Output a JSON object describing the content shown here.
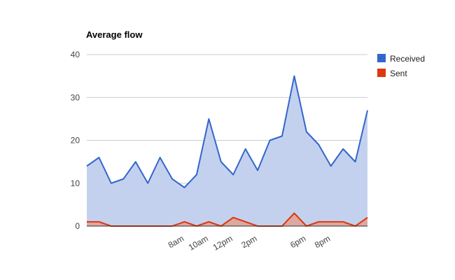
{
  "chart_data": {
    "type": "area",
    "title": "Average flow",
    "xlabel": "",
    "ylabel": "",
    "ylim": [
      0,
      40
    ],
    "yticks": [
      "0",
      "10",
      "20",
      "30",
      "40"
    ],
    "x_tick_labels": [
      {
        "label": "8am",
        "index": 8
      },
      {
        "label": "10am",
        "index": 10
      },
      {
        "label": "12pm",
        "index": 12
      },
      {
        "label": "2pm",
        "index": 14
      },
      {
        "label": "6pm",
        "index": 18
      },
      {
        "label": "8pm",
        "index": 20
      }
    ],
    "grid": true,
    "legend_position": "right",
    "series": [
      {
        "name": "Received",
        "color": "#3366cc",
        "fill": "#c4d1ee",
        "values": [
          14,
          16,
          10,
          11,
          15,
          10,
          16,
          11,
          9,
          12,
          25,
          15,
          12,
          18,
          13,
          20,
          21,
          35,
          22,
          19,
          14,
          18,
          15,
          27
        ]
      },
      {
        "name": "Sent",
        "color": "#dc3912",
        "fill": "#dca8a0",
        "values": [
          1,
          1,
          0,
          0,
          0,
          0,
          0,
          0,
          1,
          0,
          1,
          0,
          2,
          1,
          0,
          0,
          0,
          3,
          0,
          1,
          1,
          1,
          0,
          2
        ]
      }
    ]
  }
}
